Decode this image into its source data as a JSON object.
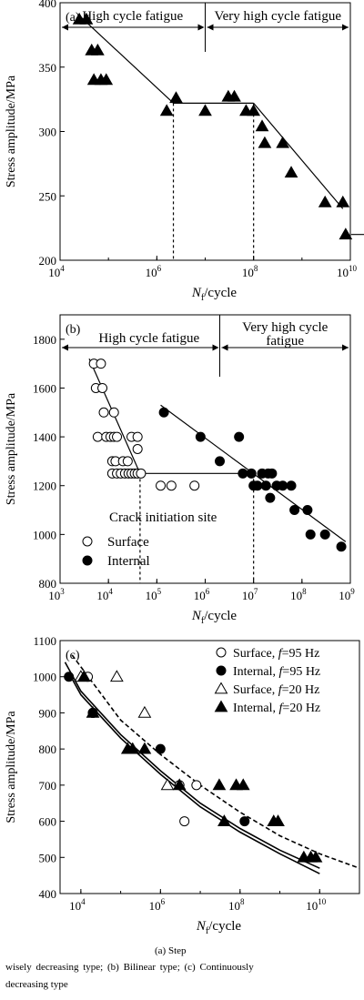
{
  "colors": {
    "ink": "#000000",
    "background": "#ffffff"
  },
  "caption": {
    "line1": "(a) Step",
    "line2": "wisely decreasing type; (b) Bilinear type; (c) Continuously",
    "line3": "decreasing type"
  },
  "chart_data": [
    {
      "panel": "(a)",
      "type": "scatter",
      "xlabel_main": "N",
      "xlabel_sub": "f",
      "xlabel_rest": "/cycle",
      "ylabel": "Stress amplitude/MPa",
      "x_scale": "log",
      "xlim": [
        10000,
        10000000000
      ],
      "ylim": [
        200,
        400
      ],
      "x_ticks": [
        {
          "value": 10000,
          "base": "10",
          "exp": "4"
        },
        {
          "value": 1000000,
          "base": "10",
          "exp": "6"
        },
        {
          "value": 100000000,
          "base": "10",
          "exp": "8"
        },
        {
          "value": 10000000000,
          "base": "10",
          "exp": "10"
        }
      ],
      "y_ticks": [
        "200",
        "250",
        "300",
        "350",
        "400"
      ],
      "regime_labels": [
        "High cycle fatigue",
        "Very high cycle fatigue"
      ],
      "regime_boundary": 10000000,
      "series": [
        {
          "marker": "filled-triangle",
          "points": [
            [
              25000,
              387
            ],
            [
              35000,
              387
            ],
            [
              45000,
              363
            ],
            [
              60000,
              363
            ],
            [
              50000,
              340
            ],
            [
              70000,
              340
            ],
            [
              90000,
              340
            ],
            [
              2500000,
              326
            ],
            [
              1600000,
              316
            ],
            [
              10000000,
              316
            ],
            [
              30000000,
              327
            ],
            [
              40000000,
              327
            ],
            [
              70000000,
              316
            ],
            [
              100000000,
              316
            ],
            [
              150000000,
              304
            ],
            [
              170000000,
              291
            ],
            [
              400000000,
              291
            ],
            [
              600000000,
              268
            ],
            [
              3000000000,
              245
            ],
            [
              7000000000,
              245
            ],
            [
              8000000000,
              220
            ]
          ],
          "runout_arrow_from": [
            8000000000,
            220
          ]
        }
      ],
      "fit_lines": [
        {
          "from": [
            25000,
            390
          ],
          "to": [
            2200000,
            322
          ]
        },
        {
          "from": [
            2200000,
            322
          ],
          "to": [
            100000000,
            322
          ]
        },
        {
          "from": [
            100000000,
            322
          ],
          "to": [
            7000000000,
            240
          ]
        }
      ],
      "dashed_verticals": [
        {
          "x": 2200000,
          "y_top": 322
        },
        {
          "x": 100000000,
          "y_top": 322
        }
      ]
    },
    {
      "panel": "(b)",
      "type": "scatter",
      "xlabel_main": "N",
      "xlabel_sub": "f",
      "xlabel_rest": "/cycle",
      "ylabel": "Stress amplitude/MPa",
      "x_scale": "log",
      "xlim": [
        1000,
        1000000000
      ],
      "ylim": [
        800,
        1900
      ],
      "x_ticks": [
        {
          "value": 1000,
          "base": "10",
          "exp": "3"
        },
        {
          "value": 10000,
          "base": "10",
          "exp": "4"
        },
        {
          "value": 100000,
          "base": "10",
          "exp": "5"
        },
        {
          "value": 1000000,
          "base": "10",
          "exp": "6"
        },
        {
          "value": 10000000,
          "base": "10",
          "exp": "7"
        },
        {
          "value": 100000000,
          "base": "10",
          "exp": "8"
        },
        {
          "value": 1000000000,
          "base": "10",
          "exp": "9"
        }
      ],
      "y_ticks": [
        "800",
        "1000",
        "1200",
        "1400",
        "1600",
        "1800"
      ],
      "regime_labels": [
        "High cycle fatigue",
        "Very high cycle",
        "fatigue"
      ],
      "regime_boundary": 2000000,
      "legend_title": "Crack initiation site",
      "series": [
        {
          "name": "Surface",
          "marker": "open-circle",
          "points": [
            [
              5000,
              1700
            ],
            [
              7000,
              1700
            ],
            [
              5500,
              1600
            ],
            [
              7500,
              1600
            ],
            [
              8000,
              1500
            ],
            [
              13000,
              1500
            ],
            [
              6000,
              1400
            ],
            [
              9000,
              1400
            ],
            [
              11000,
              1400
            ],
            [
              13000,
              1400
            ],
            [
              15000,
              1400
            ],
            [
              30000,
              1400
            ],
            [
              40000,
              1400
            ],
            [
              12000,
              1300
            ],
            [
              14000,
              1300
            ],
            [
              20000,
              1300
            ],
            [
              25000,
              1300
            ],
            [
              40000,
              1350
            ],
            [
              12000,
              1250
            ],
            [
              15000,
              1250
            ],
            [
              18000,
              1250
            ],
            [
              22000,
              1250
            ],
            [
              26000,
              1250
            ],
            [
              30000,
              1250
            ],
            [
              35000,
              1250
            ],
            [
              40000,
              1250
            ],
            [
              47000,
              1250
            ],
            [
              120000,
              1200
            ],
            [
              200000,
              1200
            ],
            [
              600000,
              1200
            ]
          ]
        },
        {
          "name": "Internal",
          "marker": "filled-circle",
          "points": [
            [
              140000,
              1500
            ],
            [
              800000,
              1400
            ],
            [
              5000000,
              1400
            ],
            [
              2000000,
              1300
            ],
            [
              6000000,
              1250
            ],
            [
              9000000,
              1250
            ],
            [
              15000000,
              1250
            ],
            [
              20000000,
              1250
            ],
            [
              24000000,
              1250
            ],
            [
              10000000,
              1200
            ],
            [
              12000000,
              1200
            ],
            [
              18000000,
              1200
            ],
            [
              30000000,
              1200
            ],
            [
              40000000,
              1200
            ],
            [
              60000000,
              1200
            ],
            [
              22000000,
              1150
            ],
            [
              70000000,
              1100
            ],
            [
              130000000,
              1100
            ],
            [
              150000000,
              1000
            ],
            [
              300000000,
              1000
            ],
            [
              650000000,
              950
            ]
          ]
        }
      ],
      "fit_lines": [
        {
          "from": [
            4000,
            1720
          ],
          "to": [
            45000,
            1250
          ]
        },
        {
          "from": [
            45000,
            1250
          ],
          "to": [
            10000000,
            1250
          ]
        },
        {
          "from": [
            120000,
            1530
          ],
          "to": [
            800000000,
            970
          ]
        }
      ],
      "dashed_verticals": [
        {
          "x": 45000,
          "y_top": 1250
        },
        {
          "x": 10000000,
          "y_top": 1250
        }
      ]
    },
    {
      "panel": "(c)",
      "type": "scatter",
      "xlabel_main": "N",
      "xlabel_sub": "f",
      "xlabel_rest": "/cycle",
      "ylabel": "Stress amplitude/MPa",
      "x_scale": "log",
      "xlim": [
        3000,
        100000000000
      ],
      "ylim": [
        400,
        1100
      ],
      "x_ticks": [
        {
          "value": 10000,
          "base": "10",
          "exp": "4"
        },
        {
          "value": 1000000,
          "base": "10",
          "exp": "6"
        },
        {
          "value": 100000000,
          "base": "10",
          "exp": "8"
        },
        {
          "value": 10000000000,
          "base": "10",
          "exp": "10"
        }
      ],
      "y_ticks": [
        "400",
        "500",
        "600",
        "700",
        "800",
        "900",
        "1000",
        "1100"
      ],
      "series": [
        {
          "name": "Surface, ",
          "freq": "=95 Hz",
          "marker": "open-circle",
          "points": [
            [
              15000,
              1000
            ],
            [
              20000,
              900
            ],
            [
              4000000,
              600
            ],
            [
              3000000,
              700
            ],
            [
              8000000,
              700
            ]
          ]
        },
        {
          "name": "Internal, ",
          "freq": "=95 Hz",
          "marker": "filled-circle",
          "points": [
            [
              5000,
              1000
            ],
            [
              20000,
              900
            ],
            [
              1000000,
              800
            ],
            [
              130000000,
              600
            ]
          ]
        },
        {
          "name": "Surface, ",
          "freq": "=20 Hz",
          "marker": "open-triangle",
          "points": [
            [
              10000,
              1000
            ],
            [
              80000,
              1000
            ],
            [
              400000,
              900
            ],
            [
              1500000,
              700
            ]
          ]
        },
        {
          "name": "Internal, ",
          "freq": "=20 Hz",
          "marker": "filled-triangle",
          "points": [
            [
              12000,
              1000
            ],
            [
              20000,
              900
            ],
            [
              150000,
              800
            ],
            [
              200000,
              800
            ],
            [
              400000,
              800
            ],
            [
              3000000,
              700
            ],
            [
              30000000,
              700
            ],
            [
              80000000,
              700
            ],
            [
              120000000,
              700
            ],
            [
              40000000,
              600
            ],
            [
              700000000,
              600
            ],
            [
              900000000,
              600
            ],
            [
              4000000000,
              500
            ],
            [
              6000000000,
              500
            ],
            [
              8000000000,
              500
            ]
          ]
        }
      ],
      "curves": [
        {
          "style": "solid",
          "points": [
            [
              4000,
              1040
            ],
            [
              10000,
              960
            ],
            [
              100000,
              840
            ],
            [
              1000000,
              740
            ],
            [
              10000000,
              650
            ],
            [
              100000000,
              580
            ],
            [
              1000000000,
              520
            ],
            [
              10000000000,
              470
            ]
          ]
        },
        {
          "style": "solid",
          "points": [
            [
              5000,
              1010
            ],
            [
              10000,
              950
            ],
            [
              100000,
              830
            ],
            [
              1000000,
              730
            ],
            [
              10000000,
              640
            ],
            [
              100000000,
              570
            ],
            [
              1000000000,
              510
            ],
            [
              10000000000,
              455
            ]
          ]
        },
        {
          "style": "dashed",
          "points": [
            [
              6000,
              1060
            ],
            [
              100000,
              880
            ],
            [
              1000000,
              785
            ],
            [
              10000000,
              700
            ],
            [
              100000000,
              625
            ],
            [
              1000000000,
              560
            ],
            [
              10000000000,
              510
            ],
            [
              100000000000,
              470
            ]
          ]
        }
      ]
    }
  ]
}
